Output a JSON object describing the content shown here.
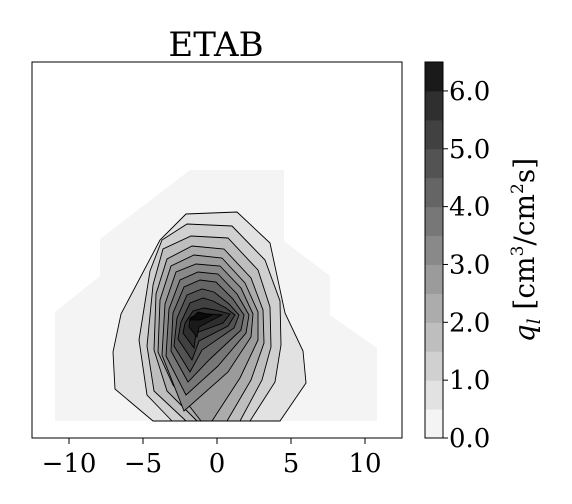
{
  "chart_data": {
    "type": "contour",
    "title": "ETAB",
    "x_ticks": [
      -10,
      -5,
      0,
      5,
      10
    ],
    "x_tick_labels": [
      "−10",
      "−5",
      "0",
      "5",
      "10"
    ],
    "xlim": [
      -12.5,
      12.5
    ],
    "ylim": [
      0,
      1
    ],
    "colorbar": {
      "label": "q_l [cm³/cm²s]",
      "label_display": "ql [cm3/cm2s]",
      "ticks": [
        0.0,
        1.0,
        2.0,
        3.0,
        4.0,
        5.0,
        6.0
      ],
      "tick_labels": [
        "0.0",
        "1.0",
        "2.0",
        "3.0",
        "4.0",
        "5.0",
        "6.0"
      ],
      "range": [
        0.0,
        6.5
      ],
      "levels": [
        0.0,
        0.5,
        1.0,
        1.5,
        2.0,
        2.5,
        3.0,
        3.5,
        4.0,
        4.5,
        5.0,
        5.5,
        6.0,
        6.5
      ],
      "colormap": "greys"
    },
    "contour_levels": [
      {
        "level": 0.0,
        "color": "#f4f4f4"
      },
      {
        "level": 0.5,
        "color": "#e2e2e2"
      },
      {
        "level": 1.0,
        "color": "#d0d0d0"
      },
      {
        "level": 1.5,
        "color": "#bebebe"
      },
      {
        "level": 2.0,
        "color": "#acacac"
      },
      {
        "level": 2.5,
        "color": "#9b9b9b"
      },
      {
        "level": 3.0,
        "color": "#898989"
      },
      {
        "level": 3.5,
        "color": "#777777"
      },
      {
        "level": 4.0,
        "color": "#656565"
      },
      {
        "level": 4.5,
        "color": "#535353"
      },
      {
        "level": 5.0,
        "color": "#414141"
      },
      {
        "level": 5.5,
        "color": "#2f2f2f"
      },
      {
        "level": 6.0,
        "color": "#1a1a1a"
      }
    ],
    "peak": {
      "x": -1.0,
      "value": 6.2
    },
    "grid": false
  }
}
